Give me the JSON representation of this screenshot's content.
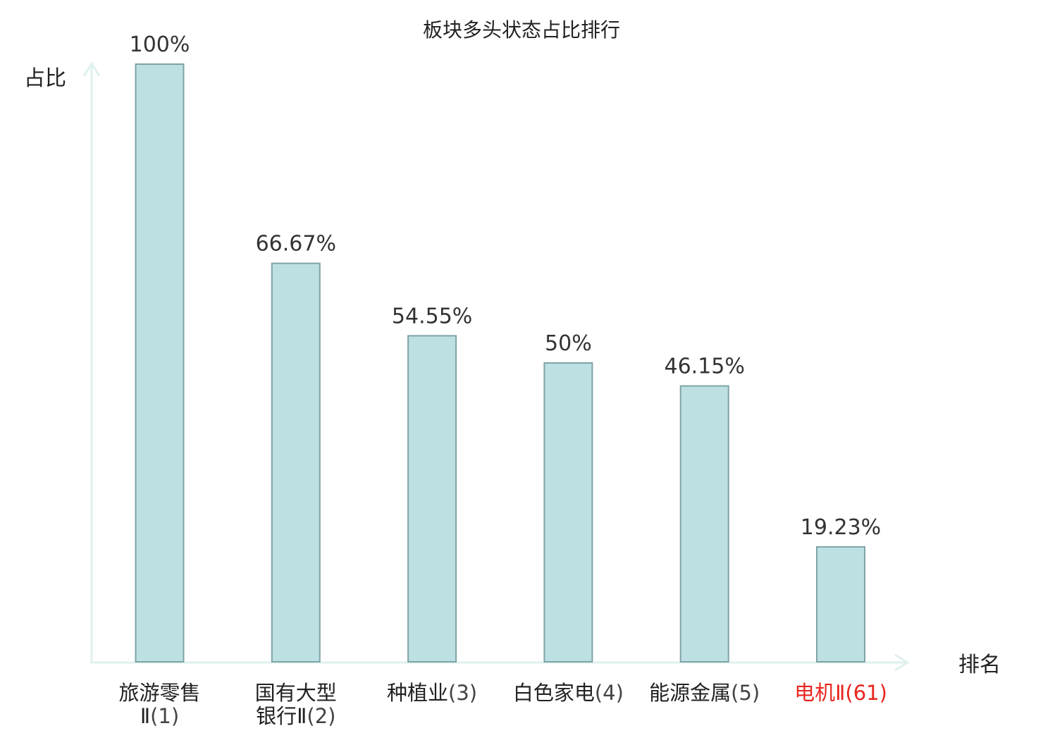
{
  "chart_data": {
    "type": "bar",
    "title": "板块多头状态占比排行",
    "ylabel": "占比",
    "xlabel": "排名",
    "ylim": [
      0,
      100
    ],
    "grid": false,
    "categories": [
      {
        "name_lines": [
          "旅游零售",
          "Ⅱ"
        ],
        "rank": "(1)",
        "highlight": false
      },
      {
        "name_lines": [
          "国有大型",
          "银行Ⅱ"
        ],
        "rank": "(2)",
        "highlight": false
      },
      {
        "name_lines": [
          "种植业"
        ],
        "rank": "(3)",
        "highlight": false
      },
      {
        "name_lines": [
          "白色家电"
        ],
        "rank": "(4)",
        "highlight": false
      },
      {
        "name_lines": [
          "能源金属"
        ],
        "rank": "(5)",
        "highlight": false
      },
      {
        "name_lines": [
          "电机Ⅱ"
        ],
        "rank": "(61)",
        "highlight": true
      }
    ],
    "values": [
      100,
      66.67,
      54.55,
      50,
      46.15,
      19.23
    ],
    "value_labels": [
      "100%",
      "66.67%",
      "54.55%",
      "50%",
      "46.15%",
      "19.23%"
    ],
    "colors": {
      "bar_fill": "#bde0e3",
      "bar_stroke": "#7fa3a6",
      "axis": "#dff1ee",
      "highlight_text": "#e8251f"
    }
  }
}
